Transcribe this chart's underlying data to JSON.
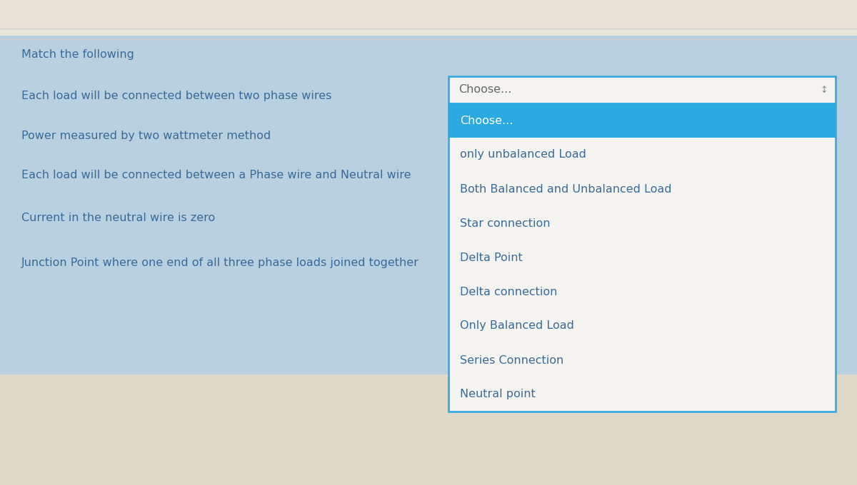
{
  "title": "Match the following",
  "title_fontsize": 11.5,
  "left_items": [
    "Each load will be connected between two phase wires",
    "Power measured by two wattmeter method",
    "Each load will be connected between a Phase wire and Neutral wire",
    "Current in the neutral wire is zero",
    "Junction Point where one end of all three phase loads joined together"
  ],
  "dropdown_placeholder": "Choose...",
  "dropdown_arrow": "↕",
  "dropdown_items": [
    "Choose...",
    "only unbalanced Load",
    "Both Balanced and Unbalanced Load",
    "Star connection",
    "Delta Point",
    "Delta connection",
    "Only Balanced Load",
    "Series Connection",
    "Neutral point"
  ],
  "highlighted_item": "Choose...",
  "bg_blue": "#b8d0e0",
  "bg_cream_top": "#e8e4d8",
  "bg_cream_bottom": "#ddd8c8",
  "dropdown_bg": "#f5f4f0",
  "dropdown_highlight_bg": "#2baae2",
  "dropdown_highlight_text": "#ffffff",
  "dropdown_normal_text": "#3a6a9a",
  "dropdown_border": "#3aabe2",
  "left_text_color": "#3a6a9a",
  "title_color": "#3a6a9a",
  "item_fontsize": 11.5,
  "dropdown_fontsize": 11.5,
  "placeholder_color": "#666666",
  "arrow_color": "#888888",
  "fig_width": 12,
  "fig_height": 6.8
}
